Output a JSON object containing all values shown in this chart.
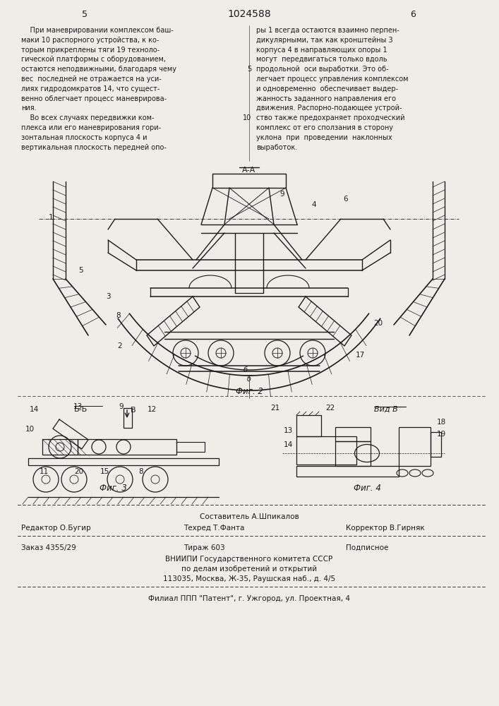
{
  "page_bg": "#f0ede8",
  "text_color": "#1a1a1a",
  "title_center": "1024588",
  "page_left": "5",
  "page_right": "6",
  "left_column_lines": [
    "    При маневрировании комплексом баш-",
    "маки 10 распорного устройства, к ко-",
    "торым прикреплены тяги 19 техноло-",
    "гической платформы с оборудованием,",
    "остаются неподвижными, благодаря чему",
    "вес  последней не отражается на уси-",
    "лиях гидродомкратов 14, что сущест-",
    "венно облегчает процесс маневрирова-",
    "ния.",
    "    Во всех случаях передвижки ком-",
    "плекса или его маневрирования гори-",
    "зонтальная плоскость корпуса 4 и",
    "вертикальная плоскость передней опо-"
  ],
  "right_column_lines": [
    "ры 1 всегда остаются взаимно перпен-",
    "дикулярными, так как кронштейны 3",
    "корпуса 4 в направляющих опоры 1",
    "могут  передвигаться только вдоль",
    "продольной  оси выработки. Это об-",
    "легчает процесс управления комплексом",
    "и одновременно  обеспечивает выдер-",
    "жанность заданного направления его",
    "движения. Распорно-подающее устрой-",
    "ство также предохраняет проходческий",
    "комплекс от его сползания в сторону",
    "уклона  при  проведении  наклонных",
    "выработок."
  ],
  "fig2_caption": "Фиг. 2",
  "fig3_caption": "Фиг. 3",
  "fig4_caption": "Фиг. 4",
  "footer_line1_center": "Составитель А.Шпикалов",
  "footer_line2_left": "Редактор О.Бугир",
  "footer_line2_center": "Техред Т.Фанта",
  "footer_line2_right": "Корректор В.Гирняк",
  "footer_line3_left": "Заказ 4355/29",
  "footer_line3_center": "Тираж 603",
  "footer_line3_right": "Подписное",
  "footer_line4": "ВНИИПИ Государственного комитета СССР",
  "footer_line5": "по делам изобретений и открытий",
  "footer_line6": "113035, Москва, Ж-35, Раушская наб., д. 4/5",
  "footer_line7": "Филиал ППП \"Патент\", г. Ужгород, ул. Проектная, 4",
  "line_number_5": "5",
  "line_number_10": "10"
}
